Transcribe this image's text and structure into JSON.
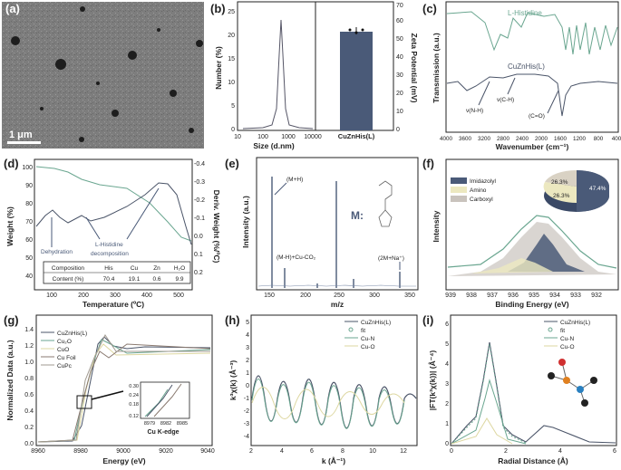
{
  "panels": {
    "a": {
      "label": "(a)",
      "scale": "1 μm"
    },
    "b": {
      "label": "(b)",
      "xlabel": "Size (d.nm)",
      "ylabel_left": "Number (%)",
      "ylabel_right": "Zeta Potential (mV)",
      "category": "CuZnHis(L)"
    },
    "c": {
      "label": "(c)",
      "xlabel": "Wavenumber (cm⁻¹)",
      "ylabel": "Transmission (a.u.)",
      "series1": "L-Histidine",
      "series2": "CuZnHis(L)",
      "ann1": "ν(C-H)",
      "ann2": "ν(N-H)",
      "ann3": "(C=O)"
    },
    "d": {
      "label": "(d)",
      "xlabel": "Temperature (ºC)",
      "ylabel_left": "Weight (%)",
      "ylabel_right": "Deriv. Weight (%/ºC)",
      "ann1": "Dehydration",
      "ann2": "L-Histidine",
      "ann3": "decomposition",
      "table": {
        "headers": [
          "Composition",
          "His",
          "Cu",
          "Zn",
          "H₂O"
        ],
        "row": [
          "Content (%)",
          "70.4",
          "19.1",
          "0.6",
          "9.9"
        ]
      }
    },
    "e": {
      "label": "(e)",
      "xlabel": "m/z",
      "ylabel": "Intensity (a.u.)",
      "ann1": "(M+H)",
      "ann2": "(M-H)+Cu-CO₂",
      "ann3": "(2M+Na⁺)",
      "mlabel": "M:"
    },
    "f": {
      "label": "(f)",
      "xlabel": "Binding Energy (eV)",
      "ylabel": "Intensity",
      "legend": [
        "Imidazolyl",
        "Amino",
        "Carboxyl"
      ],
      "pie": [
        "47.4%",
        "26.3%",
        "26.3%"
      ]
    },
    "g": {
      "label": "(g)",
      "xlabel": "Energy (eV)",
      "ylabel": "Normalized Data (a.u.)",
      "legend": [
        "CuZnHis(L)",
        "Cu₂O",
        "CuO",
        "Cu Foil",
        "CuPc"
      ],
      "inset": "Cu K-edge"
    },
    "h": {
      "label": "(h)",
      "xlabel": "k (Å⁻¹)",
      "ylabel": "k³χ(k) (Å⁻³)",
      "legend": [
        "CuZnHis(L)",
        "fit",
        "Cu-N",
        "Cu-O"
      ]
    },
    "i": {
      "label": "(i)",
      "xlabel": "Radial Distance (Å)",
      "ylabel": "|FT(k³χ(k))| (Å⁻⁴)",
      "legend": [
        "CuZnHis(L)",
        "fit",
        "Cu-N",
        "Cu-O"
      ]
    }
  },
  "ticks": {
    "b_x": [
      "10",
      "100",
      "1000",
      "10000"
    ],
    "b_y": [
      "0",
      "5",
      "10",
      "15",
      "20",
      "25"
    ],
    "b_yr": [
      "0",
      "10",
      "20",
      "30",
      "40",
      "50",
      "60",
      "70"
    ],
    "c_x": [
      "4000",
      "3600",
      "3200",
      "2800",
      "2400",
      "2000",
      "1600",
      "1200",
      "800",
      "400"
    ],
    "d_x": [
      "100",
      "200",
      "300",
      "400",
      "500"
    ],
    "d_y": [
      "100",
      "90",
      "80",
      "70",
      "60",
      "50",
      "40"
    ],
    "d_yr": [
      "-0.4",
      "-0.3",
      "-0.2",
      "-0.1",
      "0.0",
      "0.1",
      "0.2"
    ],
    "e_x": [
      "150",
      "200",
      "250",
      "300",
      "350"
    ],
    "f_x": [
      "939",
      "938",
      "937",
      "936",
      "935",
      "934",
      "933",
      "932"
    ],
    "g_x": [
      "8960",
      "8980",
      "9000",
      "9020",
      "9040"
    ],
    "g_y": [
      "0.0",
      "0.2",
      "0.4",
      "0.6",
      "0.8",
      "1.0",
      "1.2",
      "1.4"
    ],
    "gi_x": [
      "8979",
      "8982",
      "8985"
    ],
    "gi_y": [
      "0.30",
      "0.24",
      "0.18",
      "0.12"
    ],
    "h_x": [
      "2",
      "4",
      "6",
      "8",
      "10",
      "12"
    ],
    "h_y": [
      "5",
      "4",
      "3",
      "2",
      "1",
      "0",
      "-1",
      "-2",
      "-3",
      "-4"
    ],
    "i_x": [
      "0",
      "2",
      "4",
      "6"
    ],
    "i_y": [
      "0",
      "1",
      "2",
      "3",
      "4",
      "5",
      "6"
    ]
  }
}
